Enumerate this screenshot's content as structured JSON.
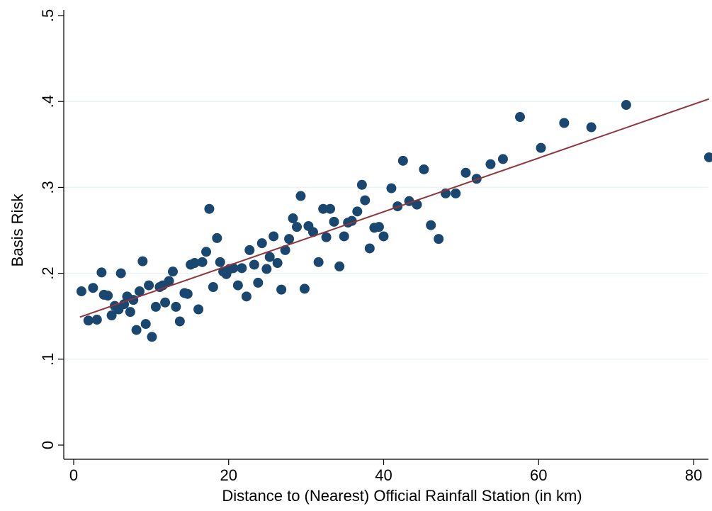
{
  "chart_data": {
    "type": "scatter",
    "title": "",
    "xlabel": "Distance to (Nearest) Official Rainfall Station (in km)",
    "ylabel": "Basis Risk",
    "xlim": [
      0,
      82
    ],
    "ylim": [
      0,
      0.5
    ],
    "xticks": [
      0,
      20,
      40,
      60,
      80
    ],
    "xtick_labels": [
      "0",
      "20",
      "40",
      "60",
      "80"
    ],
    "yticks": [
      0,
      0.1,
      0.2,
      0.3,
      0.4,
      0.5
    ],
    "ytick_labels": [
      "0",
      ".1",
      ".2",
      ".3",
      ".4",
      ".5"
    ],
    "grid": "horizontal",
    "legend": "none",
    "colors": {
      "points": "#1a476f",
      "fit_line": "#90353b",
      "grid": "#eaf2f3",
      "axis": "#000000"
    },
    "fit_line": {
      "x": [
        0.8,
        82
      ],
      "y": [
        0.149,
        0.403
      ]
    },
    "points": [
      {
        "x": 1.0,
        "y": 0.179
      },
      {
        "x": 1.9,
        "y": 0.145
      },
      {
        "x": 2.5,
        "y": 0.183
      },
      {
        "x": 3.0,
        "y": 0.146
      },
      {
        "x": 3.6,
        "y": 0.201
      },
      {
        "x": 3.9,
        "y": 0.175
      },
      {
        "x": 4.4,
        "y": 0.174
      },
      {
        "x": 4.9,
        "y": 0.151
      },
      {
        "x": 5.3,
        "y": 0.162
      },
      {
        "x": 5.8,
        "y": 0.158
      },
      {
        "x": 6.1,
        "y": 0.2
      },
      {
        "x": 6.5,
        "y": 0.164
      },
      {
        "x": 6.9,
        "y": 0.173
      },
      {
        "x": 7.3,
        "y": 0.155
      },
      {
        "x": 7.7,
        "y": 0.169
      },
      {
        "x": 8.1,
        "y": 0.134
      },
      {
        "x": 8.5,
        "y": 0.179
      },
      {
        "x": 8.9,
        "y": 0.214
      },
      {
        "x": 9.3,
        "y": 0.141
      },
      {
        "x": 9.7,
        "y": 0.186
      },
      {
        "x": 10.1,
        "y": 0.126
      },
      {
        "x": 10.6,
        "y": 0.161
      },
      {
        "x": 11.1,
        "y": 0.184
      },
      {
        "x": 11.5,
        "y": 0.186
      },
      {
        "x": 11.8,
        "y": 0.166
      },
      {
        "x": 12.3,
        "y": 0.191
      },
      {
        "x": 12.8,
        "y": 0.202
      },
      {
        "x": 13.2,
        "y": 0.161
      },
      {
        "x": 13.7,
        "y": 0.144
      },
      {
        "x": 14.3,
        "y": 0.177
      },
      {
        "x": 14.7,
        "y": 0.176
      },
      {
        "x": 15.1,
        "y": 0.21
      },
      {
        "x": 15.6,
        "y": 0.212
      },
      {
        "x": 16.1,
        "y": 0.158
      },
      {
        "x": 16.6,
        "y": 0.213
      },
      {
        "x": 17.1,
        "y": 0.225
      },
      {
        "x": 17.5,
        "y": 0.275
      },
      {
        "x": 18.0,
        "y": 0.184
      },
      {
        "x": 18.5,
        "y": 0.241
      },
      {
        "x": 18.9,
        "y": 0.213
      },
      {
        "x": 19.3,
        "y": 0.202
      },
      {
        "x": 19.7,
        "y": 0.199
      },
      {
        "x": 20.1,
        "y": 0.205
      },
      {
        "x": 20.6,
        "y": 0.206
      },
      {
        "x": 21.2,
        "y": 0.186
      },
      {
        "x": 21.7,
        "y": 0.206
      },
      {
        "x": 22.3,
        "y": 0.173
      },
      {
        "x": 22.7,
        "y": 0.227
      },
      {
        "x": 23.3,
        "y": 0.21
      },
      {
        "x": 23.8,
        "y": 0.189
      },
      {
        "x": 24.3,
        "y": 0.235
      },
      {
        "x": 24.9,
        "y": 0.205
      },
      {
        "x": 25.3,
        "y": 0.219
      },
      {
        "x": 25.8,
        "y": 0.243
      },
      {
        "x": 26.3,
        "y": 0.212
      },
      {
        "x": 26.8,
        "y": 0.181
      },
      {
        "x": 27.3,
        "y": 0.227
      },
      {
        "x": 27.8,
        "y": 0.24
      },
      {
        "x": 28.3,
        "y": 0.264
      },
      {
        "x": 28.8,
        "y": 0.254
      },
      {
        "x": 29.3,
        "y": 0.29
      },
      {
        "x": 29.8,
        "y": 0.182
      },
      {
        "x": 30.3,
        "y": 0.255
      },
      {
        "x": 30.9,
        "y": 0.248
      },
      {
        "x": 31.6,
        "y": 0.213
      },
      {
        "x": 32.2,
        "y": 0.275
      },
      {
        "x": 32.6,
        "y": 0.242
      },
      {
        "x": 33.1,
        "y": 0.275
      },
      {
        "x": 33.6,
        "y": 0.26
      },
      {
        "x": 34.3,
        "y": 0.208
      },
      {
        "x": 34.9,
        "y": 0.243
      },
      {
        "x": 35.4,
        "y": 0.259
      },
      {
        "x": 35.9,
        "y": 0.261
      },
      {
        "x": 36.6,
        "y": 0.272
      },
      {
        "x": 37.2,
        "y": 0.303
      },
      {
        "x": 37.6,
        "y": 0.285
      },
      {
        "x": 38.2,
        "y": 0.229
      },
      {
        "x": 38.8,
        "y": 0.253
      },
      {
        "x": 39.4,
        "y": 0.254
      },
      {
        "x": 40.0,
        "y": 0.243
      },
      {
        "x": 41.0,
        "y": 0.299
      },
      {
        "x": 41.8,
        "y": 0.278
      },
      {
        "x": 42.5,
        "y": 0.331
      },
      {
        "x": 43.3,
        "y": 0.284
      },
      {
        "x": 44.3,
        "y": 0.28
      },
      {
        "x": 45.2,
        "y": 0.321
      },
      {
        "x": 46.1,
        "y": 0.256
      },
      {
        "x": 47.1,
        "y": 0.24
      },
      {
        "x": 48.0,
        "y": 0.293
      },
      {
        "x": 49.3,
        "y": 0.293
      },
      {
        "x": 50.6,
        "y": 0.317
      },
      {
        "x": 52.0,
        "y": 0.31
      },
      {
        "x": 53.8,
        "y": 0.327
      },
      {
        "x": 55.4,
        "y": 0.333
      },
      {
        "x": 57.6,
        "y": 0.382
      },
      {
        "x": 60.3,
        "y": 0.346
      },
      {
        "x": 63.3,
        "y": 0.375
      },
      {
        "x": 66.8,
        "y": 0.37
      },
      {
        "x": 71.3,
        "y": 0.396
      },
      {
        "x": 82.0,
        "y": 0.335
      }
    ]
  }
}
